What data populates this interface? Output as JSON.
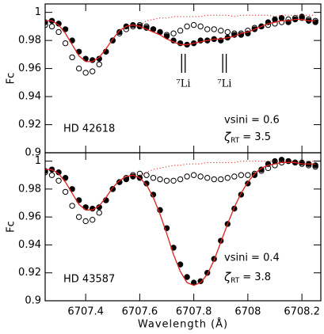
{
  "chart_data": [
    {
      "type": "scatter",
      "xlim": [
        6707.25,
        6708.27
      ],
      "ylim": [
        0.9,
        1.006
      ],
      "xticks": [
        6707.4,
        6707.6,
        6707.8,
        6708,
        6708.2
      ],
      "xtick_labels": false,
      "yticks": [
        0.9,
        0.92,
        0.94,
        0.96,
        0.98,
        1
      ],
      "ylabel": "Fc",
      "star": "HD 42618",
      "vsini": "vsini = 0.6",
      "zeta": "ζ",
      "zeta_sub": "RT",
      "zeta_value": "=  3.5",
      "markers": [
        {
          "x": [
            6707.755,
            6707.768
          ],
          "label": "⁷Li"
        },
        {
          "x": [
            6707.907,
            6707.92
          ],
          "label": "⁷Li"
        }
      ],
      "x": [
        6707.25,
        6707.275,
        6707.3,
        6707.325,
        6707.35,
        6707.375,
        6707.4,
        6707.425,
        6707.45,
        6707.475,
        6707.5,
        6707.525,
        6707.55,
        6707.575,
        6707.6,
        6707.625,
        6707.65,
        6707.675,
        6707.7,
        6707.725,
        6707.75,
        6707.775,
        6707.8,
        6707.825,
        6707.85,
        6707.875,
        6707.9,
        6707.925,
        6707.95,
        6707.975,
        6708,
        6708.025,
        6708.05,
        6708.075,
        6708.1,
        6708.125,
        6708.15,
        6708.175,
        6708.2,
        6708.225,
        6708.25
      ],
      "series": [
        {
          "style": "open",
          "color": "#000000",
          "values": [
            0.991,
            0.99,
            0.986,
            0.978,
            0.968,
            0.96,
            0.957,
            0.958,
            0.963,
            0.972,
            0.98,
            0.985,
            0.988,
            0.99,
            0.991,
            0.99,
            0.988,
            0.986,
            0.984,
            0.985,
            0.987,
            0.99,
            0.991,
            0.99,
            0.988,
            0.988,
            0.987,
            0.986,
            0.985,
            0.985,
            0.987,
            0.989,
            0.99,
            0.991,
            0.992,
            0.993,
            0.995,
            0.996,
            0.996,
            0.995,
            0.994
          ]
        },
        {
          "style": "filled",
          "color": "#000000",
          "values": [
            0.993,
            0.994,
            0.992,
            0.988,
            0.98,
            0.972,
            0.967,
            0.966,
            0.967,
            0.972,
            0.98,
            0.986,
            0.99,
            0.991,
            0.99,
            0.989,
            0.988,
            0.986,
            0.983,
            0.98,
            0.978,
            0.977,
            0.978,
            0.98,
            0.98,
            0.981,
            0.98,
            0.982,
            0.984,
            0.984,
            0.985,
            0.988,
            0.99,
            0.993,
            0.995,
            0.996,
            0.993,
            0.995,
            0.997,
            0.994,
            0.993
          ]
        },
        {
          "style": "line",
          "color": "#e0201b",
          "values": [
            0.994,
            0.994,
            0.991,
            0.985,
            0.977,
            0.969,
            0.965,
            0.965,
            0.968,
            0.974,
            0.981,
            0.987,
            0.99,
            0.991,
            0.99,
            0.988,
            0.986,
            0.984,
            0.981,
            0.979,
            0.977,
            0.977,
            0.978,
            0.979,
            0.98,
            0.981,
            0.981,
            0.982,
            0.983,
            0.985,
            0.986,
            0.988,
            0.99,
            0.992,
            0.993,
            0.994,
            0.994,
            0.995,
            0.995,
            0.994,
            0.994
          ]
        },
        {
          "style": "dotted",
          "color": "#e0201b",
          "values": [
            null,
            null,
            null,
            null,
            null,
            null,
            null,
            null,
            null,
            null,
            null,
            null,
            null,
            null,
            0.991,
            0.994,
            0.995,
            0.996,
            0.996,
            0.997,
            0.997,
            0.997,
            0.997,
            0.997,
            0.998,
            0.998,
            0.998,
            0.998,
            0.997,
            0.998,
            0.998,
            0.998,
            0.998,
            0.998,
            0.997,
            0.998,
            0.998,
            0.998,
            0.998,
            0.998,
            0.998
          ]
        }
      ]
    },
    {
      "type": "scatter",
      "xlim": [
        6707.25,
        6708.27
      ],
      "ylim": [
        0.9,
        1.006
      ],
      "xticks": [
        6707.4,
        6707.6,
        6707.8,
        6708,
        6708.2
      ],
      "xtick_labels": true,
      "yticks": [
        0.9,
        0.92,
        0.94,
        0.96,
        0.98,
        1
      ],
      "ylabel": "Fc",
      "xlabel": "Wavelength (Å)",
      "star": "HD 43587",
      "vsini": "vsini = 0.4",
      "zeta": "ζ",
      "zeta_sub": "RT",
      "zeta_value": "=  3.8",
      "x": [
        6707.25,
        6707.275,
        6707.3,
        6707.325,
        6707.35,
        6707.375,
        6707.4,
        6707.425,
        6707.45,
        6707.475,
        6707.5,
        6707.525,
        6707.55,
        6707.575,
        6707.6,
        6707.625,
        6707.65,
        6707.675,
        6707.7,
        6707.725,
        6707.75,
        6707.775,
        6707.8,
        6707.825,
        6707.85,
        6707.875,
        6707.9,
        6707.925,
        6707.95,
        6707.975,
        6708,
        6708.025,
        6708.05,
        6708.075,
        6708.1,
        6708.125,
        6708.15,
        6708.175,
        6708.2,
        6708.225,
        6708.25
      ],
      "series": [
        {
          "style": "open",
          "color": "#000000",
          "values": [
            0.992,
            0.99,
            0.986,
            0.978,
            0.968,
            0.96,
            0.957,
            0.958,
            0.963,
            0.972,
            0.98,
            0.985,
            0.988,
            0.99,
            0.991,
            0.99,
            0.988,
            0.987,
            0.986,
            0.986,
            0.987,
            0.989,
            0.99,
            0.989,
            0.988,
            0.987,
            0.987,
            0.988,
            0.989,
            0.99,
            0.99,
            0.991,
            0.993,
            0.995,
            0.997,
            0.999,
            1.0,
            0.999,
            0.998,
            0.997,
            0.996
          ]
        },
        {
          "style": "filled",
          "color": "#000000",
          "values": [
            0.993,
            0.994,
            0.992,
            0.988,
            0.98,
            0.972,
            0.967,
            0.966,
            0.967,
            0.972,
            0.98,
            0.985,
            0.987,
            0.989,
            0.988,
            0.984,
            0.976,
            0.965,
            0.952,
            0.938,
            0.926,
            0.917,
            0.913,
            0.914,
            0.92,
            0.93,
            0.943,
            0.955,
            0.966,
            0.976,
            0.984,
            0.99,
            0.994,
            0.998,
            1.0,
            1.001,
            1.0,
            0.999,
            0.999,
            0.998,
            0.997
          ]
        },
        {
          "style": "line",
          "color": "#e0201b",
          "values": [
            0.994,
            0.994,
            0.991,
            0.985,
            0.977,
            0.969,
            0.965,
            0.965,
            0.968,
            0.974,
            0.981,
            0.986,
            0.989,
            0.99,
            0.988,
            0.983,
            0.974,
            0.962,
            0.948,
            0.933,
            0.921,
            0.913,
            0.911,
            0.913,
            0.919,
            0.929,
            0.942,
            0.955,
            0.967,
            0.977,
            0.985,
            0.991,
            0.995,
            0.997,
            0.998,
            0.999,
            0.999,
            0.999,
            0.998,
            0.998,
            0.998
          ]
        },
        {
          "style": "dotted",
          "color": "#e0201b",
          "values": [
            null,
            null,
            null,
            null,
            null,
            null,
            null,
            null,
            null,
            null,
            null,
            null,
            null,
            null,
            0.99,
            0.992,
            0.994,
            0.995,
            0.996,
            0.997,
            0.997,
            0.998,
            0.998,
            0.998,
            0.999,
            0.999,
            0.999,
            0.999,
            0.999,
            1.0,
            1.0,
            1.0,
            1.0,
            1.0,
            1.0,
            1.0,
            1.0,
            1.0,
            1.0,
            1.0,
            1.0
          ]
        }
      ]
    }
  ]
}
